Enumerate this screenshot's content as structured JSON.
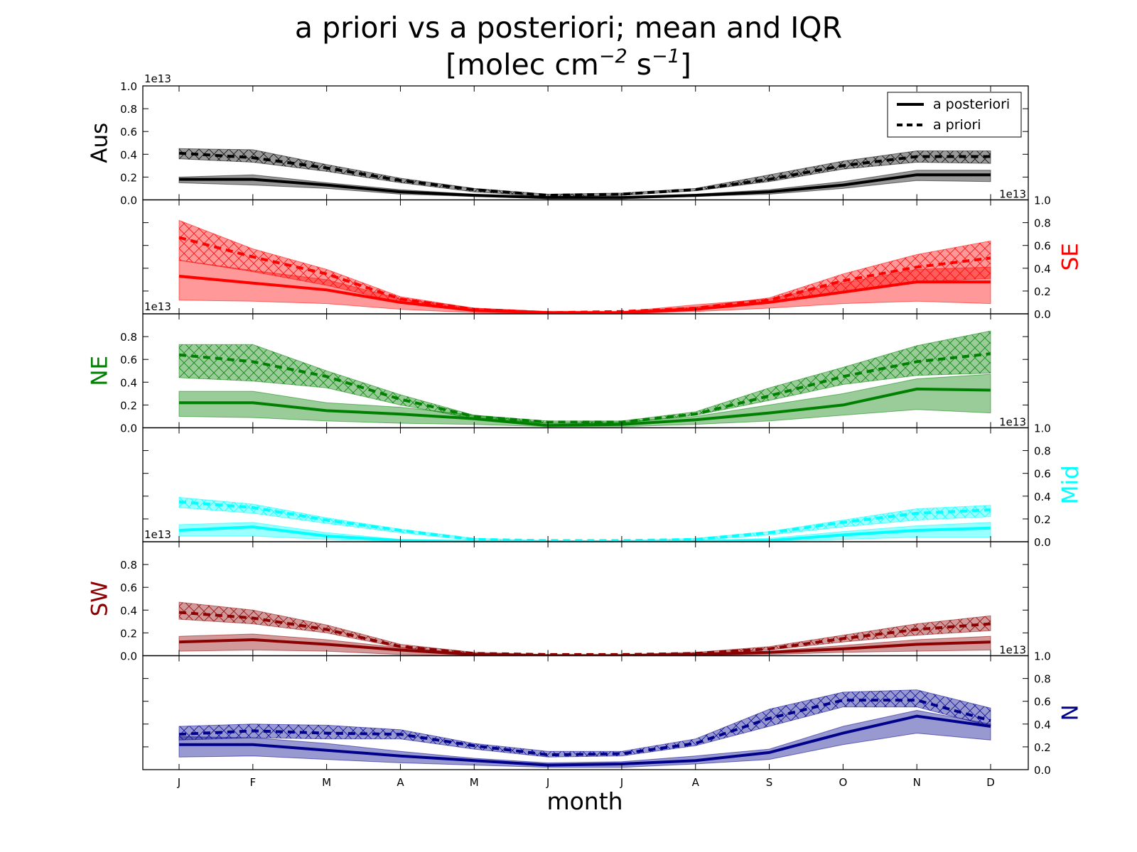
{
  "title_line1": "a priori vs a posteriori; mean and IQR",
  "title_line2": "[molec cm",
  "title_exp1": "−2",
  "title_mid": " s",
  "title_exp2": "−1",
  "title_end": "]",
  "legend": {
    "posterior_label": "a posteriori",
    "prior_label": "a priori",
    "placement": "top-right"
  },
  "xlabel": "month",
  "scale_label": "1e13",
  "colors": {
    "Aus": "#000000",
    "SE": "#ff0000",
    "NE": "#008000",
    "Mid": "#00ffff",
    "SW": "#8b0000",
    "N": "#00008b"
  },
  "chart_data": {
    "type": "line",
    "x": [
      "J",
      "F",
      "M",
      "A",
      "M",
      "J",
      "J",
      "A",
      "S",
      "O",
      "N",
      "D"
    ],
    "ylim": [
      0,
      1.0
    ],
    "yticks": [
      "0.0",
      "0.2",
      "0.4",
      "0.6",
      "0.8",
      "1.0"
    ],
    "units_multiplier": "1e13",
    "grid": false,
    "panels": [
      {
        "region": "Aus",
        "color": "#000000",
        "axis_side": "left",
        "prior": {
          "mean": [
            0.41,
            0.37,
            0.28,
            0.17,
            0.09,
            0.04,
            0.05,
            0.09,
            0.18,
            0.3,
            0.38,
            0.38
          ],
          "q1": [
            0.36,
            0.33,
            0.25,
            0.15,
            0.07,
            0.03,
            0.04,
            0.08,
            0.16,
            0.27,
            0.33,
            0.32
          ],
          "q3": [
            0.45,
            0.44,
            0.31,
            0.19,
            0.1,
            0.05,
            0.06,
            0.1,
            0.22,
            0.34,
            0.43,
            0.43
          ]
        },
        "posterior": {
          "mean": [
            0.18,
            0.18,
            0.13,
            0.07,
            0.04,
            0.02,
            0.02,
            0.04,
            0.07,
            0.13,
            0.22,
            0.22
          ],
          "q1": [
            0.15,
            0.13,
            0.1,
            0.05,
            0.03,
            0.01,
            0.01,
            0.03,
            0.05,
            0.1,
            0.17,
            0.16
          ],
          "q3": [
            0.2,
            0.22,
            0.15,
            0.09,
            0.05,
            0.03,
            0.03,
            0.05,
            0.09,
            0.16,
            0.26,
            0.26
          ]
        }
      },
      {
        "region": "SE",
        "color": "#ff0000",
        "axis_side": "right",
        "prior": {
          "mean": [
            0.67,
            0.5,
            0.35,
            0.13,
            0.04,
            0.01,
            0.02,
            0.05,
            0.12,
            0.29,
            0.41,
            0.49
          ],
          "q1": [
            0.47,
            0.37,
            0.25,
            0.1,
            0.03,
            0.01,
            0.01,
            0.04,
            0.1,
            0.19,
            0.28,
            0.31
          ],
          "q3": [
            0.82,
            0.57,
            0.39,
            0.15,
            0.05,
            0.02,
            0.02,
            0.06,
            0.14,
            0.35,
            0.52,
            0.64
          ]
        },
        "posterior": {
          "mean": [
            0.33,
            0.27,
            0.21,
            0.1,
            0.03,
            0.01,
            0.01,
            0.04,
            0.1,
            0.19,
            0.28,
            0.28
          ],
          "q1": [
            0.12,
            0.11,
            0.09,
            0.04,
            0.01,
            0.0,
            0.0,
            0.02,
            0.05,
            0.09,
            0.11,
            0.09
          ],
          "q3": [
            0.47,
            0.38,
            0.3,
            0.13,
            0.05,
            0.02,
            0.02,
            0.08,
            0.13,
            0.27,
            0.39,
            0.41
          ]
        }
      },
      {
        "region": "NE",
        "color": "#008000",
        "axis_side": "left",
        "prior": {
          "mean": [
            0.64,
            0.58,
            0.45,
            0.25,
            0.1,
            0.05,
            0.05,
            0.12,
            0.28,
            0.45,
            0.58,
            0.65
          ],
          "q1": [
            0.44,
            0.41,
            0.35,
            0.2,
            0.08,
            0.04,
            0.04,
            0.11,
            0.24,
            0.38,
            0.46,
            0.48
          ],
          "q3": [
            0.73,
            0.73,
            0.5,
            0.29,
            0.11,
            0.06,
            0.06,
            0.14,
            0.35,
            0.53,
            0.72,
            0.85
          ]
        },
        "posterior": {
          "mean": [
            0.22,
            0.22,
            0.15,
            0.12,
            0.08,
            0.02,
            0.03,
            0.07,
            0.13,
            0.2,
            0.34,
            0.33
          ],
          "q1": [
            0.1,
            0.09,
            0.06,
            0.04,
            0.03,
            0.01,
            0.01,
            0.03,
            0.06,
            0.11,
            0.16,
            0.13
          ],
          "q3": [
            0.32,
            0.32,
            0.22,
            0.18,
            0.11,
            0.04,
            0.05,
            0.1,
            0.2,
            0.3,
            0.43,
            0.47
          ]
        }
      },
      {
        "region": "Mid",
        "color": "#00ffff",
        "axis_side": "right",
        "prior": {
          "mean": [
            0.35,
            0.3,
            0.19,
            0.1,
            0.02,
            0.01,
            0.01,
            0.02,
            0.08,
            0.17,
            0.25,
            0.28
          ],
          "q1": [
            0.3,
            0.25,
            0.16,
            0.08,
            0.01,
            0.0,
            0.0,
            0.01,
            0.06,
            0.13,
            0.19,
            0.22
          ],
          "q3": [
            0.39,
            0.33,
            0.21,
            0.11,
            0.03,
            0.01,
            0.01,
            0.03,
            0.09,
            0.19,
            0.29,
            0.32
          ]
        },
        "posterior": {
          "mean": [
            0.1,
            0.13,
            0.05,
            0.01,
            0.0,
            0.0,
            0.0,
            0.0,
            0.01,
            0.06,
            0.1,
            0.12
          ],
          "q1": [
            0.05,
            0.05,
            0.02,
            0.0,
            0.0,
            0.0,
            0.0,
            0.0,
            0.0,
            0.02,
            0.04,
            0.04
          ],
          "q3": [
            0.15,
            0.17,
            0.08,
            0.02,
            0.01,
            0.0,
            0.0,
            0.01,
            0.03,
            0.09,
            0.14,
            0.17
          ]
        }
      },
      {
        "region": "SW",
        "color": "#8b0000",
        "axis_side": "left",
        "prior": {
          "mean": [
            0.38,
            0.33,
            0.23,
            0.08,
            0.02,
            0.01,
            0.01,
            0.02,
            0.06,
            0.15,
            0.23,
            0.28
          ],
          "q1": [
            0.32,
            0.28,
            0.2,
            0.07,
            0.01,
            0.0,
            0.0,
            0.02,
            0.05,
            0.12,
            0.18,
            0.22
          ],
          "q3": [
            0.47,
            0.4,
            0.27,
            0.1,
            0.03,
            0.01,
            0.01,
            0.03,
            0.08,
            0.18,
            0.28,
            0.35
          ]
        },
        "posterior": {
          "mean": [
            0.12,
            0.14,
            0.1,
            0.05,
            0.01,
            0.0,
            0.0,
            0.01,
            0.03,
            0.06,
            0.1,
            0.12
          ],
          "q1": [
            0.04,
            0.05,
            0.04,
            0.01,
            0.0,
            0.0,
            0.0,
            0.0,
            0.01,
            0.03,
            0.04,
            0.05
          ],
          "q3": [
            0.17,
            0.19,
            0.14,
            0.07,
            0.02,
            0.01,
            0.01,
            0.02,
            0.04,
            0.09,
            0.14,
            0.17
          ]
        }
      },
      {
        "region": "N",
        "color": "#00008b",
        "axis_side": "right",
        "prior": {
          "mean": [
            0.31,
            0.34,
            0.32,
            0.31,
            0.21,
            0.13,
            0.14,
            0.23,
            0.45,
            0.61,
            0.61,
            0.43
          ],
          "q1": [
            0.26,
            0.28,
            0.27,
            0.27,
            0.18,
            0.11,
            0.12,
            0.21,
            0.38,
            0.55,
            0.55,
            0.38
          ],
          "q3": [
            0.38,
            0.4,
            0.39,
            0.35,
            0.23,
            0.16,
            0.16,
            0.27,
            0.53,
            0.68,
            0.7,
            0.54
          ]
        },
        "posterior": {
          "mean": [
            0.22,
            0.22,
            0.17,
            0.12,
            0.08,
            0.04,
            0.05,
            0.08,
            0.15,
            0.32,
            0.47,
            0.38
          ],
          "q1": [
            0.11,
            0.12,
            0.09,
            0.06,
            0.04,
            0.02,
            0.02,
            0.05,
            0.09,
            0.22,
            0.32,
            0.26
          ],
          "q3": [
            0.29,
            0.28,
            0.23,
            0.16,
            0.1,
            0.06,
            0.07,
            0.12,
            0.18,
            0.38,
            0.52,
            0.4
          ]
        }
      }
    ]
  }
}
